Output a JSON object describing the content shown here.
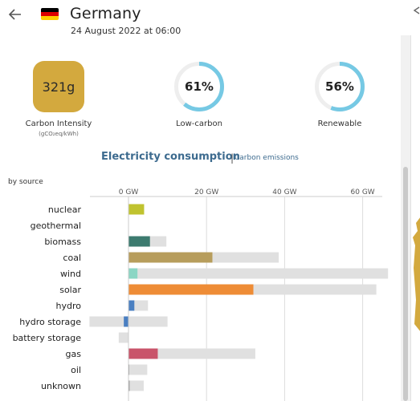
{
  "header": {
    "back_icon": "arrow-left-icon",
    "title": "Germany",
    "subtitle": "24 August 2022 at 06:00",
    "flag_colors": [
      "#000000",
      "#dd0000",
      "#ffce00"
    ]
  },
  "metrics": {
    "carbon_intensity": {
      "value": "321g",
      "label": "Carbon Intensity",
      "unit": "(gCO₂eq/kWh)",
      "color": "#d3a93e"
    },
    "low_carbon": {
      "value": "61%",
      "fraction": 0.61,
      "label": "Low-carbon"
    },
    "renewable": {
      "value": "56%",
      "fraction": 0.56,
      "label": "Renewable"
    },
    "ring_color": "#76c9e4",
    "ring_track_color": "#eeeeee"
  },
  "chart_header": {
    "title": "Electricity consumption",
    "separator": "|",
    "link": "Carbon emissions",
    "by_source": "by source"
  },
  "chart_data": {
    "type": "bar",
    "orientation": "horizontal",
    "x_ticks": [
      "0 GW",
      "20 GW",
      "40 GW",
      "60 GW"
    ],
    "x_tick_values": [
      0,
      20,
      40,
      60
    ],
    "xlim": [
      -10,
      67
    ],
    "unit": "GW",
    "categories": [
      "nuclear",
      "geothermal",
      "biomass",
      "coal",
      "wind",
      "solar",
      "hydro",
      "hydro storage",
      "battery storage",
      "gas",
      "oil",
      "unknown"
    ],
    "production": [
      4.0,
      0,
      5.5,
      21.5,
      2.3,
      32.0,
      1.5,
      -1.2,
      0,
      7.5,
      0.2,
      0.3
    ],
    "capacity": [
      4.0,
      0,
      9.7,
      38.5,
      66.5,
      63.5,
      5.0,
      10.0,
      -2.5,
      32.5,
      4.8,
      3.9
    ],
    "capacity_min": [
      0,
      0,
      0,
      0,
      0,
      0,
      0,
      -10.0,
      -2.5,
      0,
      0,
      0
    ],
    "colors": [
      "#c0c32f",
      "#cccccc",
      "#3d7b6f",
      "#b79d5c",
      "#8bd6c4",
      "#ee8c36",
      "#4a7fc1",
      "#4a7fc1",
      "#aaaaaa",
      "#c9546a",
      "#999999",
      "#999999"
    ],
    "capacity_color": "#e0e0e0",
    "grid": true
  }
}
